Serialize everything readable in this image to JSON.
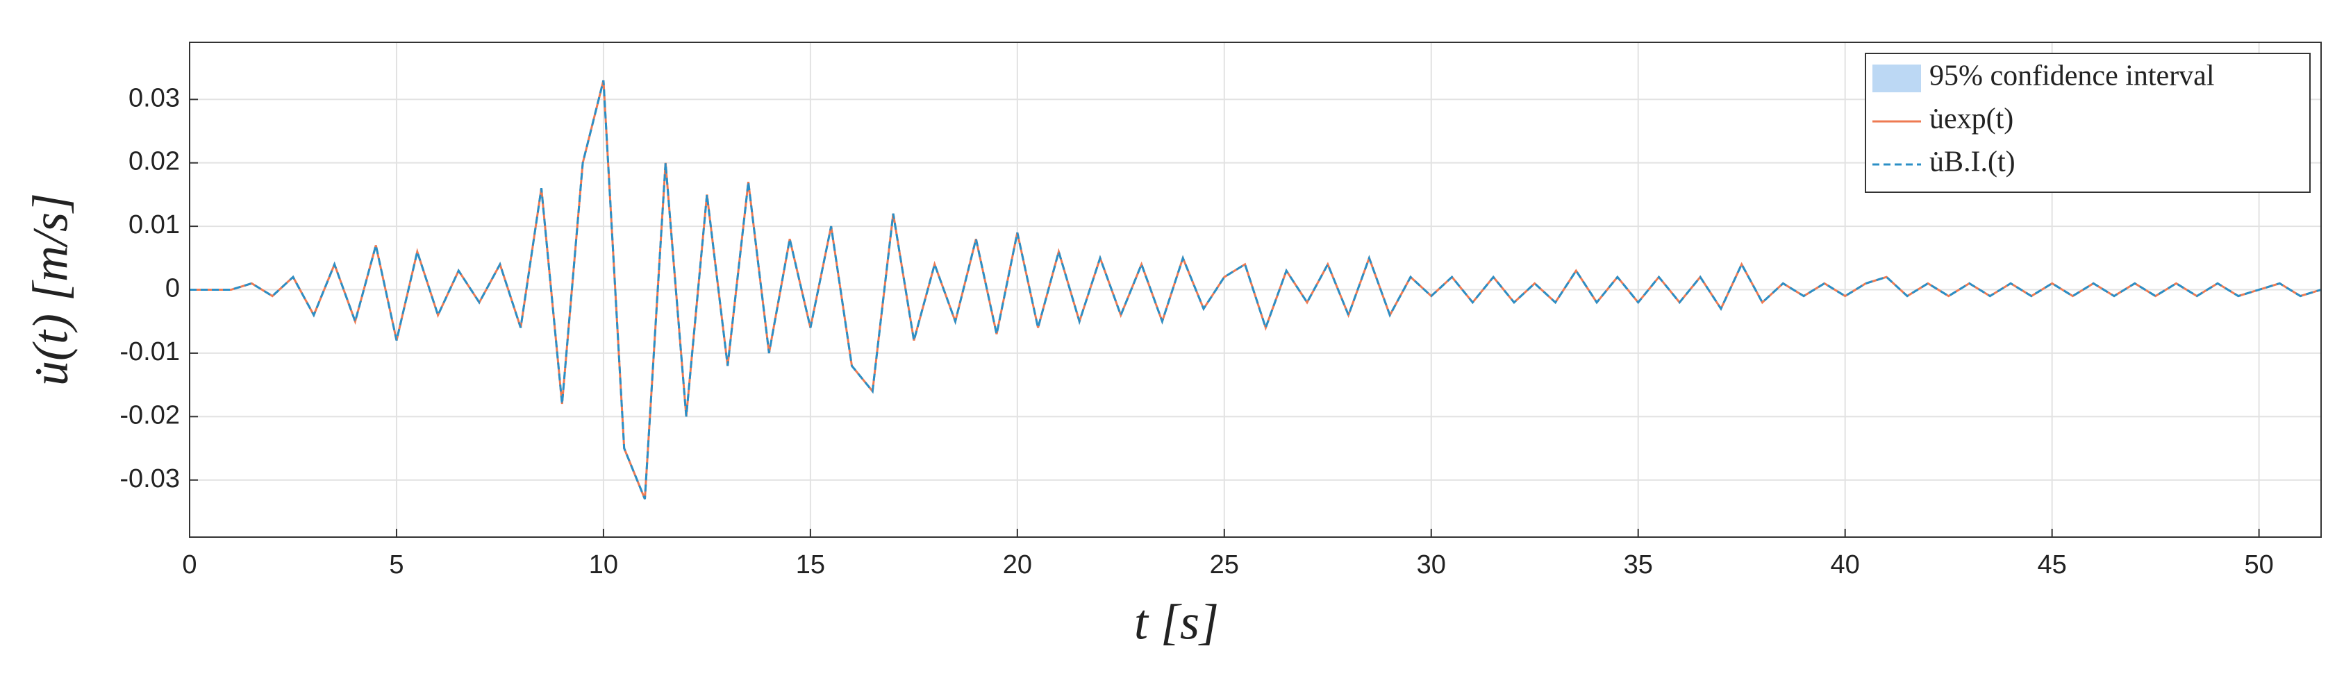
{
  "chart_data": {
    "type": "line",
    "xlabel": "t [s]",
    "ylabel": "u̇(t)  [m/s]",
    "x": [
      0,
      0.5,
      1,
      1.5,
      2,
      2.5,
      3,
      3.5,
      4,
      4.5,
      5,
      5.5,
      6,
      6.5,
      7,
      7.5,
      8,
      8.5,
      9,
      9.5,
      10,
      10.5,
      11,
      11.5,
      12,
      12.5,
      13,
      13.5,
      14,
      14.5,
      15,
      15.5,
      16,
      16.5,
      17,
      17.5,
      18,
      18.5,
      19,
      19.5,
      20,
      20.5,
      21,
      21.5,
      22,
      22.5,
      23,
      23.5,
      24,
      24.5,
      25,
      25.5,
      26,
      26.5,
      27,
      27.5,
      28,
      28.5,
      29,
      29.5,
      30,
      30.5,
      31,
      31.5,
      32,
      32.5,
      33,
      33.5,
      34,
      34.5,
      35,
      35.5,
      36,
      36.5,
      37,
      37.5,
      38,
      38.5,
      39,
      39.5,
      40,
      40.5,
      41,
      41.5,
      42,
      42.5,
      43,
      43.5,
      44,
      44.5,
      45,
      45.5,
      46,
      46.5,
      47,
      47.5,
      48,
      48.5,
      49,
      49.5,
      50,
      50.5,
      51,
      51.5
    ],
    "series": [
      {
        "name": "95% confidence interval",
        "color": "#bcd8f4",
        "style": "band"
      },
      {
        "name": "u̇exp(t)",
        "color": "#ee7a52",
        "style": "solid",
        "values": [
          0,
          0,
          0,
          0.001,
          -0.001,
          0.002,
          -0.004,
          0.004,
          -0.005,
          0.007,
          -0.008,
          0.006,
          -0.004,
          0.003,
          -0.002,
          0.004,
          -0.006,
          0.016,
          -0.018,
          0.02,
          0.033,
          -0.025,
          -0.033,
          0.02,
          -0.02,
          0.015,
          -0.012,
          0.017,
          -0.01,
          0.008,
          -0.006,
          0.01,
          -0.012,
          -0.016,
          0.012,
          -0.008,
          0.004,
          -0.005,
          0.008,
          -0.007,
          0.009,
          -0.006,
          0.006,
          -0.005,
          0.005,
          -0.004,
          0.004,
          -0.005,
          0.005,
          -0.003,
          0.002,
          0.004,
          -0.006,
          0.003,
          -0.002,
          0.004,
          -0.004,
          0.005,
          -0.004,
          0.002,
          -0.001,
          0.002,
          -0.002,
          0.002,
          -0.002,
          0.001,
          -0.002,
          0.003,
          -0.002,
          0.002,
          -0.002,
          0.002,
          -0.002,
          0.002,
          -0.003,
          0.004,
          -0.002,
          0.001,
          -0.001,
          0.001,
          -0.001,
          0.001,
          0.002,
          -0.001,
          0.001,
          -0.001,
          0.001,
          -0.001,
          0.001,
          -0.001,
          0.001,
          -0.001,
          0.001,
          -0.001,
          0.001,
          -0.001,
          0.001,
          -0.001,
          0.001,
          -0.001,
          0,
          0.001,
          -0.001,
          0
        ]
      },
      {
        "name": "u̇B.I.(t)",
        "color": "#2b8fc6",
        "style": "dashed",
        "values": [
          0,
          0,
          0,
          0.001,
          -0.001,
          0.002,
          -0.004,
          0.004,
          -0.005,
          0.007,
          -0.008,
          0.006,
          -0.004,
          0.003,
          -0.002,
          0.004,
          -0.006,
          0.016,
          -0.018,
          0.02,
          0.033,
          -0.025,
          -0.033,
          0.02,
          -0.02,
          0.015,
          -0.012,
          0.017,
          -0.01,
          0.008,
          -0.006,
          0.01,
          -0.012,
          -0.016,
          0.012,
          -0.008,
          0.004,
          -0.005,
          0.008,
          -0.007,
          0.009,
          -0.006,
          0.006,
          -0.005,
          0.005,
          -0.004,
          0.004,
          -0.005,
          0.005,
          -0.003,
          0.002,
          0.004,
          -0.006,
          0.003,
          -0.002,
          0.004,
          -0.004,
          0.005,
          -0.004,
          0.002,
          -0.001,
          0.002,
          -0.002,
          0.002,
          -0.002,
          0.001,
          -0.002,
          0.003,
          -0.002,
          0.002,
          -0.002,
          0.002,
          -0.002,
          0.002,
          -0.003,
          0.004,
          -0.002,
          0.001,
          -0.001,
          0.001,
          -0.001,
          0.001,
          0.002,
          -0.001,
          0.001,
          -0.001,
          0.001,
          -0.001,
          0.001,
          -0.001,
          0.001,
          -0.001,
          0.001,
          -0.001,
          0.001,
          -0.001,
          0.001,
          -0.001,
          0.001,
          -0.001,
          0,
          0.001,
          -0.001,
          0
        ]
      }
    ],
    "xlim": [
      0,
      51.5
    ],
    "xticks": [
      0,
      5,
      10,
      15,
      20,
      25,
      30,
      35,
      40,
      45,
      50
    ],
    "ylim": [
      -0.039,
      0.039
    ],
    "yticks": [
      -0.03,
      -0.02,
      -0.01,
      0,
      0.01,
      0.02,
      0.03
    ],
    "grid": true,
    "legend": "northeast"
  }
}
